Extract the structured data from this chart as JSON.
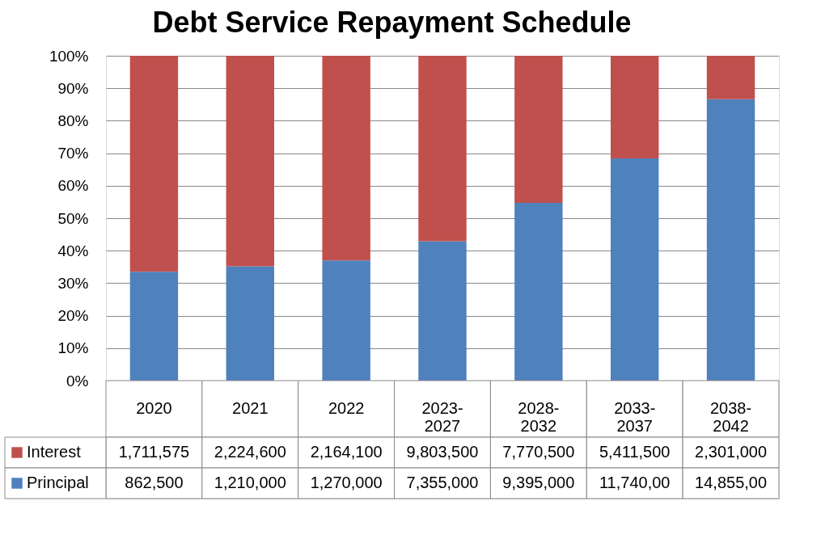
{
  "chart_data": {
    "type": "bar",
    "title": "Debt Service Repayment Schedule",
    "stacked": true,
    "categories": [
      "2020",
      "2021",
      "2022",
      "2023-2027",
      "2028-2032",
      "2033-2037",
      "2038-2042"
    ],
    "series": [
      {
        "name": "Principal",
        "color": "#4f81bd",
        "values": [
          33.5,
          35.2,
          37.0,
          42.9,
          54.7,
          68.4,
          86.6
        ]
      },
      {
        "name": "Interest",
        "color": "#c0504d",
        "values": [
          66.5,
          64.8,
          63.0,
          57.1,
          45.3,
          31.6,
          13.4
        ]
      }
    ],
    "annotations": [
      "1,711,575",
      "2,224,600",
      "2,164,100",
      "9,803,500",
      "7,770,500",
      "5,411,500",
      "2,301,000",
      "862,500",
      "1,210,000",
      "1,270,000",
      "7,355,000",
      "9,395,000",
      "11,740,00",
      "14,855,00"
    ],
    "ylim": [
      0,
      100
    ],
    "yticks": [
      {
        "value": 0,
        "label": "0%"
      },
      {
        "value": 10,
        "label": "10%"
      },
      {
        "value": 20,
        "label": "20%"
      },
      {
        "value": 30,
        "label": "30%"
      },
      {
        "value": 40,
        "label": "40%"
      },
      {
        "value": 50,
        "label": "50%"
      },
      {
        "value": 60,
        "label": "60%"
      },
      {
        "value": 70,
        "label": "70%"
      },
      {
        "value": 80,
        "label": "80%"
      },
      {
        "value": 90,
        "label": "90%"
      },
      {
        "value": 100,
        "label": "100%"
      }
    ],
    "grid": "y",
    "legend": "bottom"
  }
}
